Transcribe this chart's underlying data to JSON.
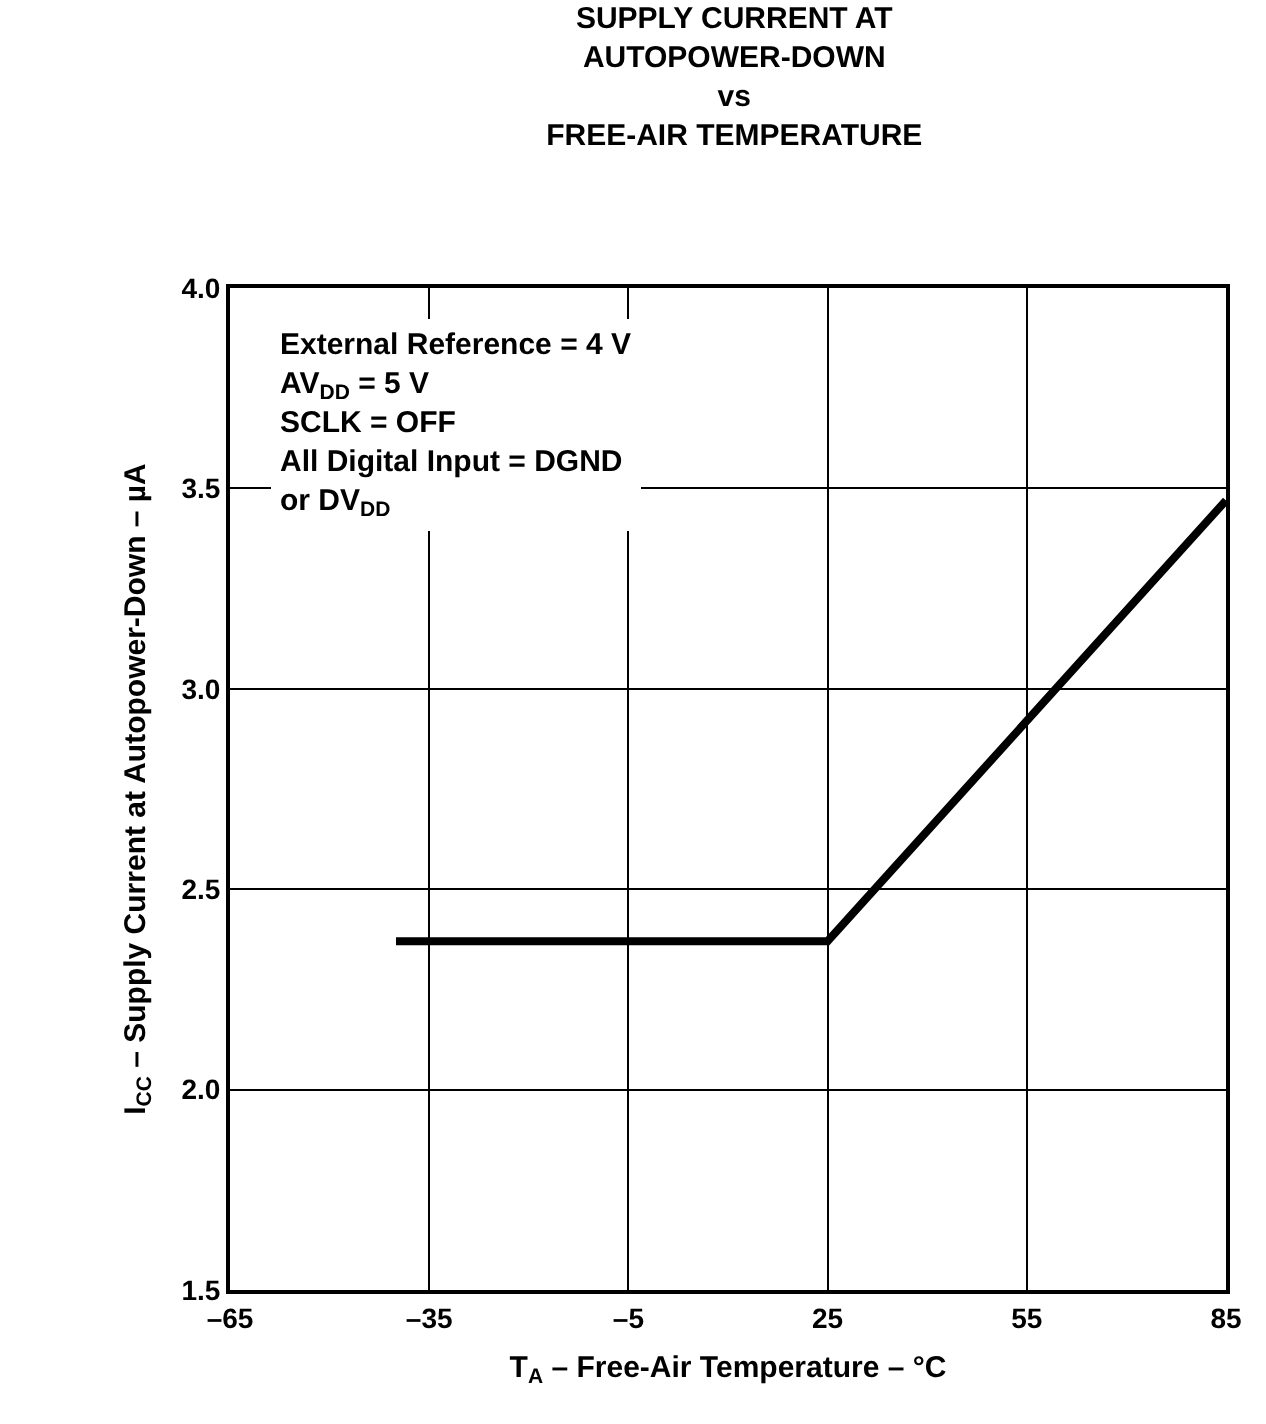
{
  "chart_data": {
    "type": "line",
    "title": "SUPPLY CURRENT AT\nAUTOPOWER-DOWN\nvs\nFREE-AIR TEMPERATURE",
    "xlabel": "T$_{A}$ – Free-Air Temperature – °C",
    "ylabel": "I$_{CC}$ – Supply Current at Autopower-Down – µA",
    "annotations": [
      "External Reference = 4 V\nAV$_{DD}$ = 5 V\nSCLK = OFF\nAll Digital Input = DGND\nor DV$_{DD}$"
    ],
    "series": [
      {
        "color": "#000000",
        "x": [
          -40,
          25,
          85
        ],
        "values": [
          2.37,
          2.37,
          3.47
        ]
      }
    ],
    "xlim": [
      -65,
      85
    ],
    "xticks": [
      {
        "value": -65,
        "label": "–65"
      },
      {
        "value": -35,
        "label": "–35"
      },
      {
        "value": -5,
        "label": "–5"
      },
      25,
      55,
      85
    ],
    "ylim": [
      1.5,
      4.0
    ],
    "yticks": [
      {
        "value": 1.5,
        "label": "1.5"
      },
      {
        "value": 2.0,
        "label": "2.0"
      },
      {
        "value": 2.5,
        "label": "2.5"
      },
      {
        "value": 3.0,
        "label": "3.0"
      },
      {
        "value": 3.5,
        "label": "3.5"
      },
      {
        "value": 4.0,
        "label": "4.0"
      }
    ],
    "grid": true,
    "marker": "none",
    "line_style": "solid"
  }
}
